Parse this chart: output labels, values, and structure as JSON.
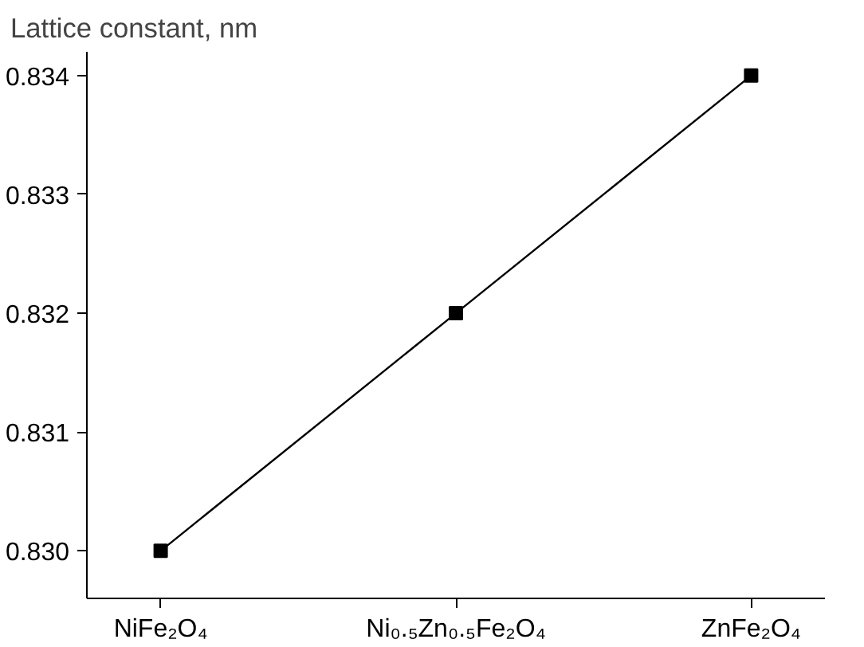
{
  "chart_data": {
    "type": "line",
    "ylabel": "Lattice constant, nm",
    "categories": [
      "NiFe₂O₄",
      "Ni₀.₅Zn₀.₅Fe₂O₄",
      "ZnFe₂O₄"
    ],
    "values": [
      0.83,
      0.832,
      0.834
    ],
    "color": "#000000",
    "ylim": [
      0.8296,
      0.8342
    ],
    "yticks": [
      {
        "value": 0.83,
        "label": "0.830"
      },
      0.831,
      0.832,
      0.833,
      0.834
    ],
    "grid": false,
    "marker": "square",
    "line_style": "solid"
  }
}
